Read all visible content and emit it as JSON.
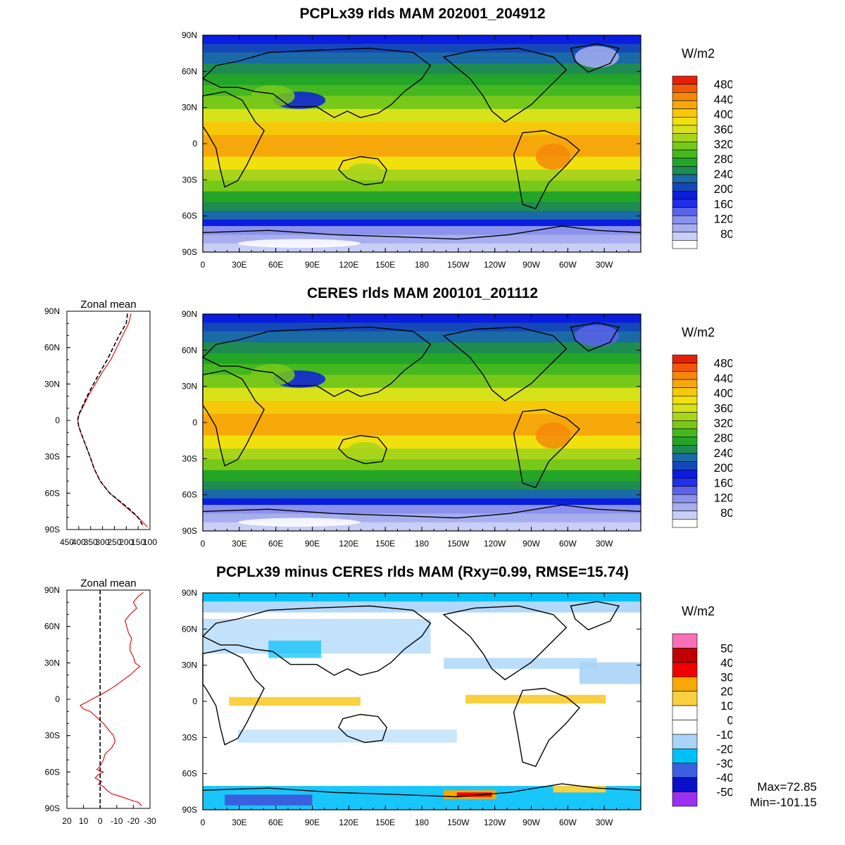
{
  "panels": [
    {
      "title": "PCPLx39 rlds MAM 202001_204912",
      "unit": "W/m2",
      "colorbar": {
        "colors": [
          "#ffffff",
          "#c8cef5",
          "#a6aef0",
          "#8a92eb",
          "#5b63e6",
          "#2030e8",
          "#0a1de0",
          "#1448b8",
          "#1a6aa8",
          "#1e8c50",
          "#23a528",
          "#45b820",
          "#78c81a",
          "#a8d41c",
          "#d8e21a",
          "#f0e00e",
          "#f6c80a",
          "#f6a80a",
          "#f58808",
          "#f05808",
          "#e62008"
        ],
        "labels": [
          "480",
          "440",
          "400",
          "360",
          "320",
          "280",
          "240",
          "200",
          "160",
          "120",
          "80"
        ]
      }
    },
    {
      "title": "CERES rlds MAM 200101_201112",
      "unit": "W/m2",
      "colorbar": {
        "colors": [
          "#ffffff",
          "#c8cef5",
          "#a6aef0",
          "#8a92eb",
          "#5b63e6",
          "#2030e8",
          "#0a1de0",
          "#1448b8",
          "#1a6aa8",
          "#1e8c50",
          "#23a528",
          "#45b820",
          "#78c81a",
          "#a8d41c",
          "#d8e21a",
          "#f0e00e",
          "#f6c80a",
          "#f6a80a",
          "#f58808",
          "#f05808",
          "#e62008"
        ],
        "labels": [
          "480",
          "440",
          "400",
          "360",
          "320",
          "280",
          "240",
          "200",
          "160",
          "120",
          "80"
        ]
      }
    },
    {
      "title": "PCPLx39 minus CERES rlds MAM (Rxy=0.99, RMSE=15.74)",
      "unit": "W/m2",
      "colorbar": {
        "colors": [
          "#9b30f0",
          "#0a10c8",
          "#3a60e0",
          "#00c0f8",
          "#a8d4f8",
          "#ffffff",
          "#ffffff",
          "#f8d040",
          "#f8a800",
          "#f00000",
          "#c00000",
          "#f870b8"
        ],
        "labels": [
          "50",
          "40",
          "30",
          "20",
          "10",
          "0",
          "-10",
          "-20",
          "-30",
          "-40",
          "-50"
        ]
      },
      "stats": {
        "max": "Max=72.85",
        "min": "Min=-101.15"
      }
    }
  ],
  "map_axes": {
    "lon_ticks": [
      "0",
      "30E",
      "60E",
      "90E",
      "120E",
      "150E",
      "180",
      "150W",
      "120W",
      "90W",
      "60W",
      "30W"
    ],
    "lat_ticks": [
      "90N",
      "60N",
      "30N",
      "0",
      "30S",
      "60S",
      "90S"
    ]
  },
  "zonal_mean": [
    {
      "title": "Zonal mean",
      "x_ticks": [
        "450",
        "400",
        "350",
        "300",
        "250",
        "200",
        "150",
        "100"
      ],
      "lat_ticks": [
        "90N",
        "60N",
        "30N",
        "0",
        "30S",
        "60S",
        "90S"
      ],
      "chart_data": {
        "type": "line",
        "xlim": [
          450,
          100
        ],
        "ylim": [
          -90,
          90
        ],
        "series": [
          {
            "color": "#e00000",
            "dash": "solid",
            "lat": [
              88,
              80,
              70,
              60,
              50,
              40,
              30,
              20,
              10,
              5,
              0,
              -5,
              -10,
              -20,
              -30,
              -40,
              -50,
              -60,
              -65,
              -70,
              -75,
              -80,
              -85,
              -88
            ],
            "values": [
              180,
              190,
              215,
              240,
              265,
              300,
              330,
              360,
              385,
              398,
              404,
              400,
              392,
              372,
              352,
              335,
              310,
              270,
              240,
              210,
              180,
              150,
              125,
              110
            ]
          },
          {
            "color": "#000000",
            "dash": "dashed",
            "lat": [
              88,
              80,
              70,
              60,
              50,
              40,
              30,
              20,
              10,
              5,
              0,
              -5,
              -10,
              -20,
              -30,
              -40,
              -50,
              -60,
              -65,
              -70,
              -75,
              -80,
              -85,
              -88
            ],
            "values": [
              195,
              200,
              230,
              255,
              280,
              310,
              338,
              365,
              388,
              400,
              405,
              400,
              391,
              372,
              352,
              335,
              310,
              270,
              238,
              206,
              176,
              150,
              135,
              128
            ]
          }
        ]
      }
    },
    {
      "title": "Zonal mean",
      "x_ticks": [
        "20",
        "10",
        "0",
        "-10",
        "-20",
        "-30"
      ],
      "lat_ticks": [
        "90N",
        "60N",
        "30N",
        "0",
        "30S",
        "60S",
        "90S"
      ],
      "chart_data": {
        "type": "line",
        "xlim": [
          20,
          -30
        ],
        "ylim": [
          -90,
          90
        ],
        "series": [
          {
            "color": "#e00000",
            "dash": "solid",
            "lat": [
              88,
              85,
              80,
              75,
              70,
              65,
              60,
              55,
              50,
              45,
              40,
              35,
              30,
              27,
              25,
              20,
              15,
              10,
              5,
              0,
              -3,
              -5,
              -8,
              -10,
              -15,
              -20,
              -25,
              -30,
              -35,
              -40,
              -45,
              -50,
              -55,
              -58,
              -60,
              -62,
              -65,
              -68,
              -70,
              -72,
              -75,
              -78,
              -80,
              -83,
              -85,
              -88
            ],
            "values": [
              -26,
              -23,
              -20,
              -22,
              -18,
              -15,
              -16,
              -17,
              -19,
              -18,
              -18,
              -20,
              -21,
              -24,
              -22,
              -18,
              -13,
              -8,
              -2,
              5,
              9,
              12,
              10,
              6,
              2,
              -2,
              -5,
              -8,
              -9,
              -7,
              -3,
              -2,
              0,
              2,
              -2,
              1,
              3,
              -1,
              1,
              -2,
              -4,
              -7,
              -12,
              -18,
              -23,
              -25
            ]
          },
          {
            "color": "#000000",
            "dash": "dashed",
            "lat": [
              90,
              -90
            ],
            "values": [
              0,
              0
            ]
          }
        ]
      }
    }
  ]
}
